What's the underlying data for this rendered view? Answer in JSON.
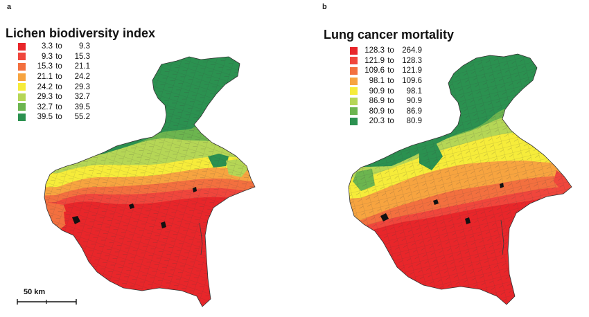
{
  "panels": [
    {
      "letter": "a",
      "title": "Lichen biodiversity index",
      "legend": [
        {
          "from": "3.3",
          "to": "9.3",
          "color": "#e8262a"
        },
        {
          "from": "9.3",
          "to": "15.3",
          "color": "#f0463c"
        },
        {
          "from": "15.3",
          "to": "21.1",
          "color": "#f3703f"
        },
        {
          "from": "21.1",
          "to": "24.2",
          "color": "#f7a440"
        },
        {
          "from": "24.2",
          "to": "29.3",
          "color": "#f6ec3a"
        },
        {
          "from": "29.3",
          "to": "32.7",
          "color": "#b5d656"
        },
        {
          "from": "32.7",
          "to": "39.5",
          "color": "#6cb54f"
        },
        {
          "from": "39.5",
          "to": "55.2",
          "color": "#2b9150"
        }
      ]
    },
    {
      "letter": "b",
      "title": "Lung cancer mortality",
      "legend": [
        {
          "from": "128.3",
          "to": "264.9",
          "color": "#e8262a"
        },
        {
          "from": "121.9",
          "to": "128.3",
          "color": "#f0463c"
        },
        {
          "from": "109.6",
          "to": "121.9",
          "color": "#f3703f"
        },
        {
          "from": "98.1",
          "to": "109.6",
          "color": "#f7a440"
        },
        {
          "from": "90.9",
          "to": "98.1",
          "color": "#f6ec3a"
        },
        {
          "from": "86.9",
          "to": "90.9",
          "color": "#b5d656"
        },
        {
          "from": "80.9",
          "to": "86.9",
          "color": "#6cb54f"
        },
        {
          "from": "20.3",
          "to": "80.9",
          "color": "#2b9150"
        }
      ]
    }
  ],
  "legend_connector": "to",
  "scale_bar": {
    "label": "50 km"
  }
}
